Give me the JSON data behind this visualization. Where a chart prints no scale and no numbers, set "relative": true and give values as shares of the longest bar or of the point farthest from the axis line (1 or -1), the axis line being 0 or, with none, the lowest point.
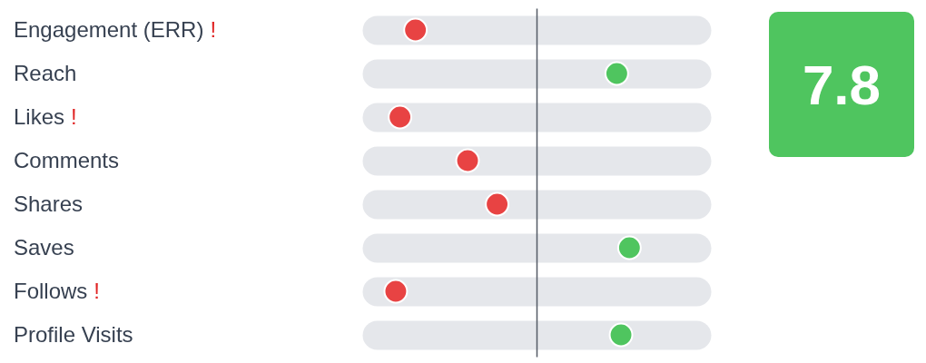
{
  "chart_data": [
    {
      "type": "scatter",
      "orientation": "horizontal",
      "relative": true,
      "grid": "y",
      "marker": "circle",
      "categories": [
        "Engagement (ERR) !",
        "Reach",
        "Likes !",
        "Comments",
        "Shares",
        "Saves",
        "Follows !",
        "Profile Visits"
      ],
      "values": [
        -0.86,
        0.57,
        -0.97,
        -0.49,
        -0.28,
        0.66,
        -1,
        0.6
      ],
      "colors": [
        "#e84343",
        "#4fc55f",
        "#e84343",
        "#e84343",
        "#e84343",
        "#4fc55f",
        "#e84343",
        "#4fc55f"
      ]
    },
    {
      "type": "other",
      "annotations": [
        "7.8"
      ],
      "color": "#4fc55f"
    }
  ]
}
